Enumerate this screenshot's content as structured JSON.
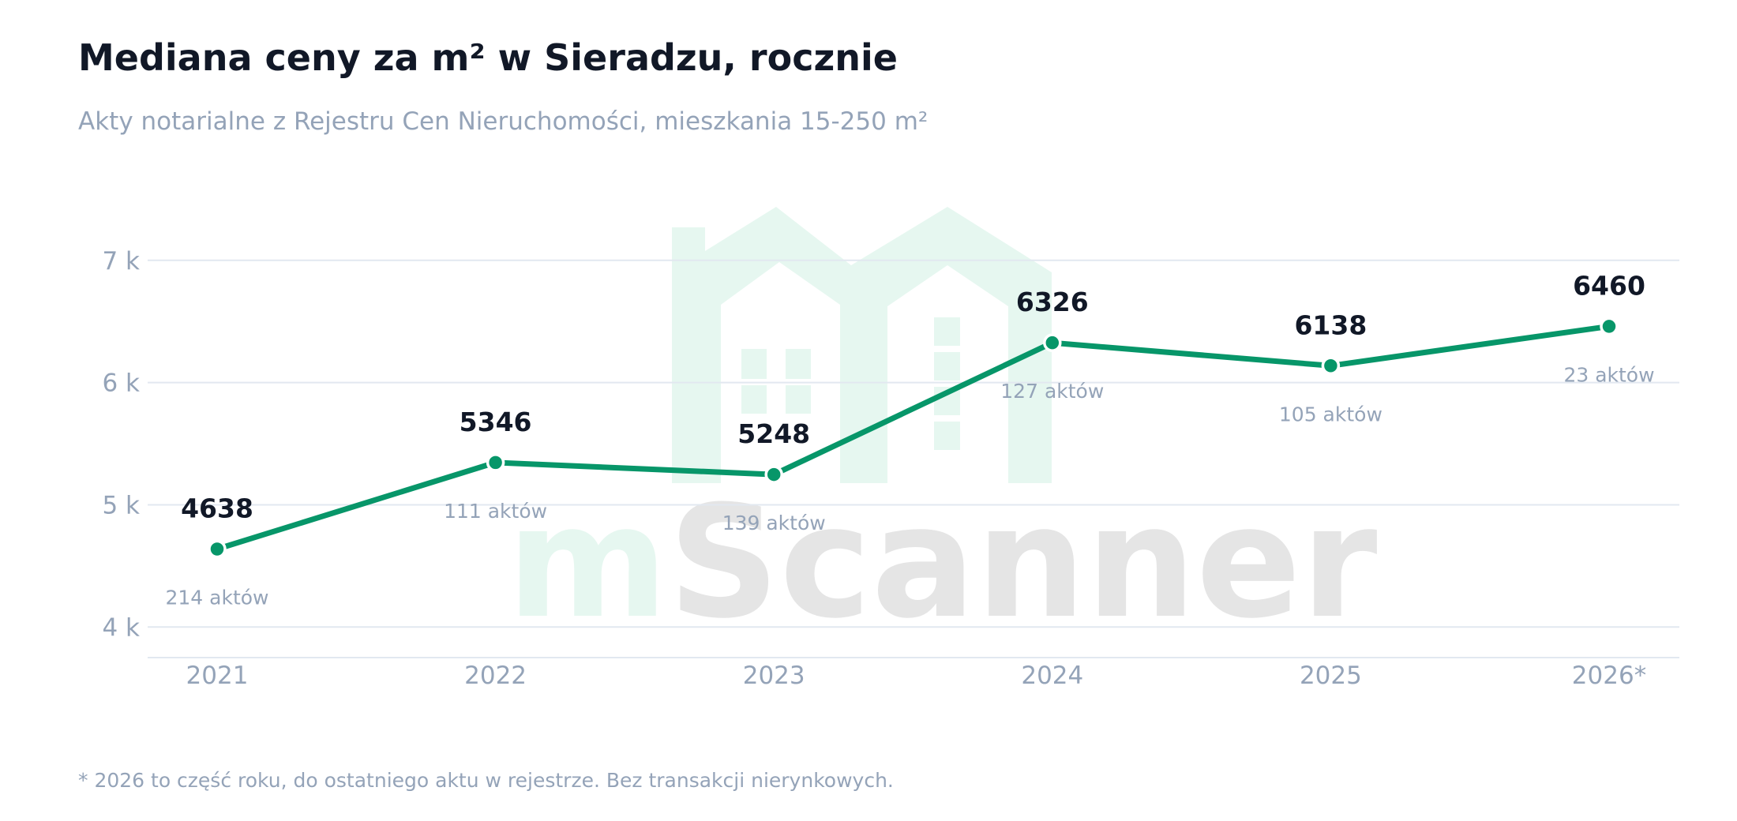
{
  "header": {
    "title": "Mediana ceny za m² w Sieradzu, rocznie",
    "subtitle": "Akty notarialne z Rejestru Cen Nieruchomości, mieszkania 15-250 m²"
  },
  "footnote": "* 2026 to część roku, do ostatniego aktu w rejestrze. Bez transakcji nierynkowych.",
  "watermark": {
    "prefix": "m",
    "suffix": "Scanner",
    "prefix_color": "#e6f7f0",
    "suffix_color": "#e5e5e5",
    "icon": "house-logo-icon"
  },
  "colors": {
    "line": "#079669",
    "grid": "#e2e8f0",
    "value_text": "#111827",
    "muted_text": "#94a3b8"
  },
  "chart_data": {
    "type": "line",
    "title": "Mediana ceny za m² w Sieradzu, rocznie",
    "subtitle": "Akty notarialne z Rejestru Cen Nieruchomości, mieszkania 15-250 m²",
    "xlabel": "",
    "ylabel": "",
    "categories": [
      "2021",
      "2022",
      "2023",
      "2024",
      "2025",
      "2026*"
    ],
    "values": [
      4638,
      5346,
      5248,
      6326,
      6138,
      6460
    ],
    "value_labels": [
      "4638",
      "5346",
      "5248",
      "6326",
      "6138",
      "6460"
    ],
    "counts": [
      "214 aktów",
      "111 aktów",
      "139 aktów",
      "127 aktów",
      "105 aktów",
      "23 aktów"
    ],
    "yticks": [
      4000,
      5000,
      6000,
      7000
    ],
    "ytick_labels": [
      "4 k",
      "5 k",
      "6 k",
      "7 k"
    ],
    "ylim": [
      3750,
      7580
    ],
    "grid": true,
    "legend": "none"
  }
}
